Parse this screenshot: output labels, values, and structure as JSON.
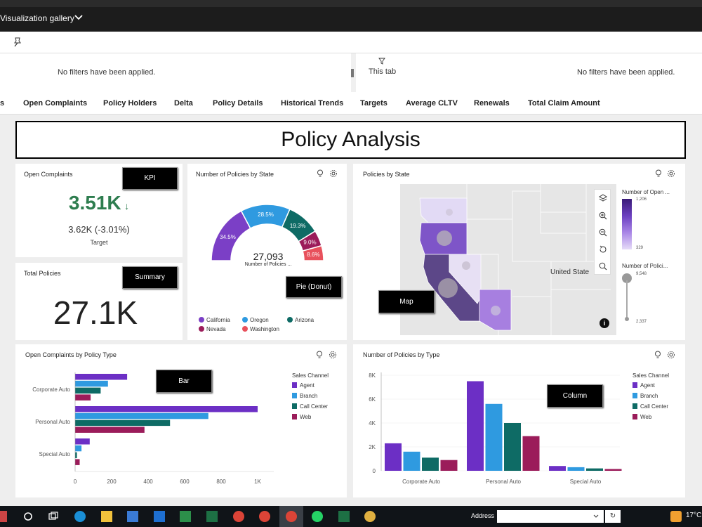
{
  "app": {
    "title": "Visualization gallery"
  },
  "filters": {
    "left_text": "No filters have been applied.",
    "right_label": "This tab",
    "right_text": "No filters have been applied."
  },
  "tabs": [
    {
      "label": "s"
    },
    {
      "label": "Open Complaints"
    },
    {
      "label": "Policy Holders"
    },
    {
      "label": "Delta"
    },
    {
      "label": "Policy Details"
    },
    {
      "label": "Historical Trends"
    },
    {
      "label": "Targets"
    },
    {
      "label": "Average CLTV"
    },
    {
      "label": "Renewals"
    },
    {
      "label": "Total Claim Amount"
    }
  ],
  "page_title": "Policy Analysis",
  "kpi": {
    "title": "Open Complaints",
    "value": "3.51K",
    "arrow": "↓",
    "target_value": "3.62K (-3.01%)",
    "target_label": "Target",
    "tag": "KPI",
    "value_color": "#2e7d4f"
  },
  "summary": {
    "title": "Total Policies",
    "value": "27.1K",
    "tag": "Summary"
  },
  "pie": {
    "title": "Number of Policies by State",
    "tag": "Pie (Donut)",
    "center_value": "27,093",
    "center_label": "Number of Policies ...",
    "slices": [
      {
        "name": "California",
        "pct": 34.5,
        "label": "34.5%",
        "color": "#7b3fc6"
      },
      {
        "name": "Oregon",
        "pct": 28.5,
        "label": "28.5%",
        "color": "#2f9ae0"
      },
      {
        "name": "Arizona",
        "pct": 19.3,
        "label": "19.3%",
        "color": "#0e6b65"
      },
      {
        "name": "Nevada",
        "pct": 9.0,
        "label": "9.0%",
        "color": "#9b1c5a"
      },
      {
        "name": "Washington",
        "pct": 8.6,
        "label": "8.6%",
        "color": "#e8515c"
      }
    ]
  },
  "map": {
    "title": "Policies by State",
    "tag": "Map",
    "country_label": "United State",
    "legend1_title": "Number of Open ...",
    "legend1_max": "1,206",
    "legend1_min": "329",
    "legend2_title": "Number of Polici...",
    "legend2_max": "9,548",
    "legend2_min": "2,337",
    "info": "i"
  },
  "bar_chart": {
    "title": "Open Complaints by Policy Type",
    "tag": "Bar",
    "legend_title": "Sales Channel"
  },
  "column_chart": {
    "title": "Number of Policies by Type",
    "tag": "Column",
    "legend_title": "Sales Channel"
  },
  "chart_data": [
    {
      "type": "pie",
      "title": "Number of Policies by State",
      "categories": [
        "California",
        "Oregon",
        "Arizona",
        "Nevada",
        "Washington"
      ],
      "values": [
        34.5,
        28.5,
        19.3,
        9.0,
        8.6
      ],
      "total": 27093
    },
    {
      "type": "bar",
      "title": "Open Complaints by Policy Type",
      "orientation": "horizontal",
      "categories": [
        "Corporate Auto",
        "Personal Auto",
        "Special Auto"
      ],
      "series": [
        {
          "name": "Agent",
          "color": "#6c2fc5",
          "values": [
            285,
            1000,
            80
          ]
        },
        {
          "name": "Branch",
          "color": "#2f9ae0",
          "values": [
            180,
            730,
            35
          ]
        },
        {
          "name": "Call Center",
          "color": "#0e6b65",
          "values": [
            140,
            520,
            10
          ]
        },
        {
          "name": "Web",
          "color": "#9b1c5a",
          "values": [
            85,
            380,
            25
          ]
        }
      ],
      "xlim": [
        0,
        1100
      ],
      "ticks": [
        0,
        200,
        400,
        600,
        800,
        1000
      ],
      "tick_labels": [
        "0",
        "200",
        "400",
        "600",
        "800",
        "1K"
      ],
      "legend": "right",
      "legend_title": "Sales Channel"
    },
    {
      "type": "bar",
      "title": "Number of Policies by Type",
      "orientation": "vertical",
      "categories": [
        "Corporate Auto",
        "Personal Auto",
        "Special Auto"
      ],
      "series": [
        {
          "name": "Agent",
          "color": "#6c2fc5",
          "values": [
            2300,
            7500,
            400
          ]
        },
        {
          "name": "Branch",
          "color": "#2f9ae0",
          "values": [
            1600,
            5600,
            300
          ]
        },
        {
          "name": "Call Center",
          "color": "#0e6b65",
          "values": [
            1100,
            4000,
            200
          ]
        },
        {
          "name": "Web",
          "color": "#9b1c5a",
          "values": [
            900,
            2900,
            150
          ]
        }
      ],
      "ylim": [
        0,
        8000
      ],
      "ticks": [
        0,
        2000,
        4000,
        6000,
        8000
      ],
      "tick_labels": [
        "0",
        "2K",
        "4K",
        "6K",
        "8K"
      ],
      "legend": "right",
      "legend_title": "Sales Channel"
    }
  ],
  "taskbar": {
    "address_label": "Address",
    "temperature": "17°C"
  }
}
